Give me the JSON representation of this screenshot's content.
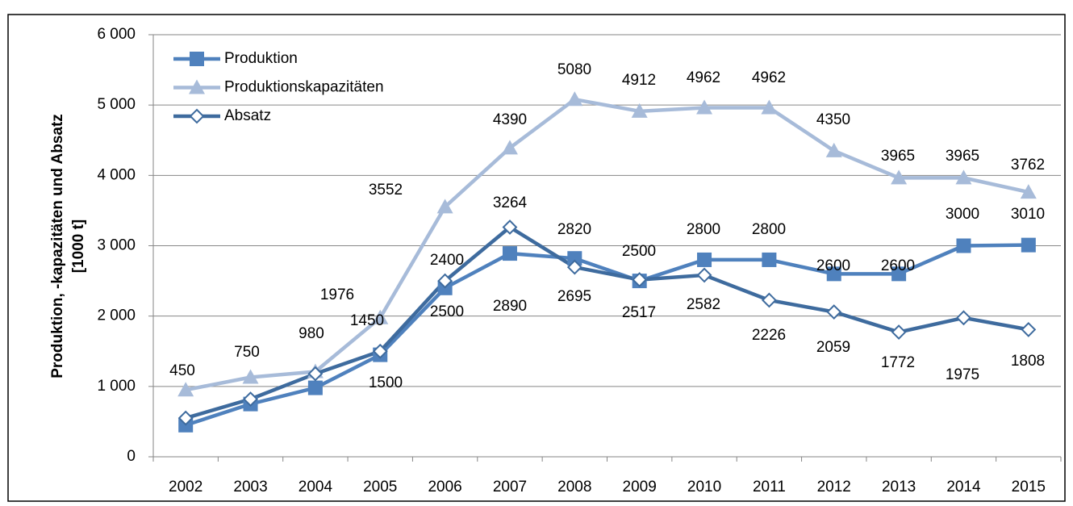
{
  "chart_data": {
    "type": "line",
    "ylabel": [
      "Produktion, -kapazitäten und Absatz",
      "[1000 t]"
    ],
    "categories": [
      "2002",
      "2003",
      "2004",
      "2005",
      "2006",
      "2007",
      "2008",
      "2009",
      "2010",
      "2011",
      "2012",
      "2013",
      "2014",
      "2015"
    ],
    "series": [
      {
        "name": "Produktion",
        "color": "#4f81bd",
        "marker": "square",
        "values": [
          450,
          750,
          980,
          1450,
          2400,
          2890,
          2820,
          2500,
          2800,
          2800,
          2600,
          2600,
          3000,
          3010
        ]
      },
      {
        "name": "Produktionskapazitäten",
        "color": "#a7bbd9",
        "marker": "triangle",
        "values": [
          950,
          1130,
          1210,
          1976,
          3552,
          4390,
          5080,
          4912,
          4962,
          4962,
          4350,
          3965,
          3965,
          3762
        ],
        "value_labels": [
          null,
          null,
          null,
          "1976",
          "3552",
          "4390",
          "5080",
          "4912",
          "4962",
          "4962",
          "4350",
          "3965",
          "3965",
          "3762"
        ]
      },
      {
        "name": "Absatz",
        "color": "#3e6b9e",
        "marker": "diamond",
        "values": [
          550,
          820,
          1180,
          1500,
          2500,
          3264,
          2695,
          2517,
          2582,
          2226,
          2059,
          1772,
          1975,
          1808
        ],
        "value_labels": [
          null,
          null,
          null,
          "1500",
          "2500",
          "3264",
          "2695",
          "2517",
          "2582",
          "2226",
          "2059",
          "1772",
          "1975",
          "1808"
        ]
      }
    ],
    "ylim": [
      0,
      6000
    ],
    "yticks": [
      0,
      {
        "value": 1000,
        "label": "1 000"
      },
      {
        "value": 2000,
        "label": "2 000"
      },
      {
        "value": 3000,
        "label": "3 000"
      },
      {
        "value": 4000,
        "label": "4 000"
      },
      {
        "value": 5000,
        "label": "5 000"
      },
      {
        "value": 6000,
        "label": "6 000"
      }
    ],
    "grid": true,
    "legend": "top-left"
  }
}
